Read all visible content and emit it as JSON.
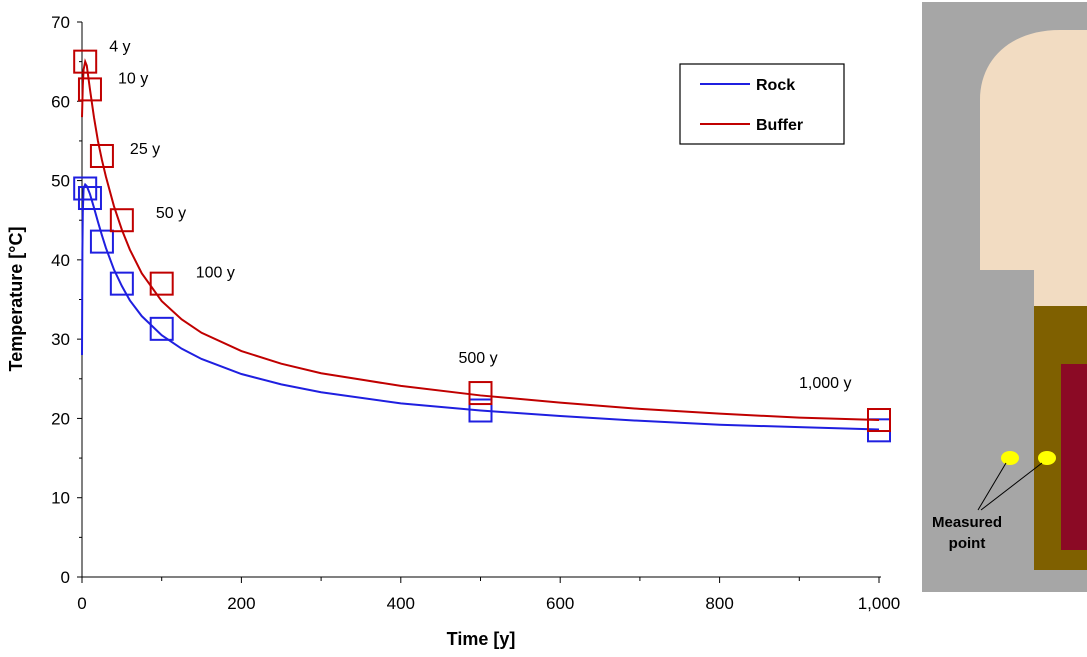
{
  "chart_data": {
    "type": "line",
    "xlabel": "Time [y]",
    "ylabel": "Temperature [°C]",
    "xlim": [
      0,
      1000
    ],
    "ylim": [
      0,
      70
    ],
    "x_ticks": [
      0,
      200,
      400,
      600,
      800,
      1000
    ],
    "x_tick_labels": [
      "0",
      "200",
      "400",
      "600",
      "800",
      "1,000"
    ],
    "y_ticks": [
      0,
      10,
      20,
      30,
      40,
      50,
      60,
      70
    ],
    "y_tick_labels": [
      "0",
      "10",
      "20",
      "30",
      "40",
      "50",
      "60",
      "70"
    ],
    "grid": false,
    "legend_position": "top-right",
    "series": [
      {
        "name": "Rock",
        "color": "#1f1fe0",
        "curve": [
          [
            0,
            28
          ],
          [
            0.5,
            41
          ],
          [
            1,
            46
          ],
          [
            2,
            49
          ],
          [
            4,
            49.5
          ],
          [
            6,
            49.3
          ],
          [
            10,
            48.3
          ],
          [
            15,
            46.6
          ],
          [
            20,
            44.8
          ],
          [
            25,
            43.1
          ],
          [
            30,
            41.5
          ],
          [
            40,
            38.8
          ],
          [
            50,
            36.7
          ],
          [
            60,
            34.9
          ],
          [
            75,
            32.9
          ],
          [
            100,
            30.5
          ],
          [
            125,
            28.8
          ],
          [
            150,
            27.5
          ],
          [
            200,
            25.6
          ],
          [
            250,
            24.3
          ],
          [
            300,
            23.3
          ],
          [
            400,
            21.9
          ],
          [
            500,
            21.0
          ],
          [
            600,
            20.3
          ],
          [
            700,
            19.7
          ],
          [
            800,
            19.2
          ],
          [
            900,
            18.9
          ],
          [
            1000,
            18.6
          ]
        ],
        "markers": [
          [
            4,
            49
          ],
          [
            10,
            47.8
          ],
          [
            25,
            42.3
          ],
          [
            50,
            37
          ],
          [
            100,
            31.3
          ],
          [
            500,
            21
          ],
          [
            1000,
            18.5
          ]
        ]
      },
      {
        "name": "Buffer",
        "color": "#c00000",
        "curve": [
          [
            0,
            58
          ],
          [
            1,
            62
          ],
          [
            2,
            64
          ],
          [
            4,
            65
          ],
          [
            6,
            64.5
          ],
          [
            10,
            61.5
          ],
          [
            15,
            58
          ],
          [
            20,
            55
          ],
          [
            25,
            52.6
          ],
          [
            30,
            50.5
          ],
          [
            40,
            46.8
          ],
          [
            50,
            43.8
          ],
          [
            60,
            41.3
          ],
          [
            75,
            38.3
          ],
          [
            100,
            34.8
          ],
          [
            125,
            32.5
          ],
          [
            150,
            30.8
          ],
          [
            200,
            28.5
          ],
          [
            250,
            26.9
          ],
          [
            300,
            25.7
          ],
          [
            400,
            24.1
          ],
          [
            500,
            22.9
          ],
          [
            600,
            22.0
          ],
          [
            700,
            21.2
          ],
          [
            800,
            20.6
          ],
          [
            900,
            20.1
          ],
          [
            1000,
            19.8
          ]
        ],
        "markers": [
          [
            4,
            65
          ],
          [
            10,
            61.5
          ],
          [
            25,
            53.1
          ],
          [
            50,
            45
          ],
          [
            100,
            37
          ],
          [
            500,
            23.2
          ],
          [
            1000,
            19.8
          ]
        ]
      }
    ],
    "annotations": [
      {
        "text": "4 y",
        "x": 4,
        "y": 65
      },
      {
        "text": "10 y",
        "x": 10,
        "y": 61.5
      },
      {
        "text": "25 y",
        "x": 25,
        "y": 53.1
      },
      {
        "text": "50 y",
        "x": 50,
        "y": 45
      },
      {
        "text": "100 y",
        "x": 100,
        "y": 37
      },
      {
        "text": "500 y",
        "x": 500,
        "y": 23.2
      },
      {
        "text": "1,000 y",
        "x": 1000,
        "y": 19.8
      }
    ]
  },
  "schematic": {
    "label_line1": "Measured",
    "label_line2": "point",
    "colors": {
      "rock": "#a6a6a6",
      "backfill": "#f2dcc2",
      "buffer": "#7f6000",
      "canister": "#8b0a25",
      "point": "#ffff00"
    }
  }
}
